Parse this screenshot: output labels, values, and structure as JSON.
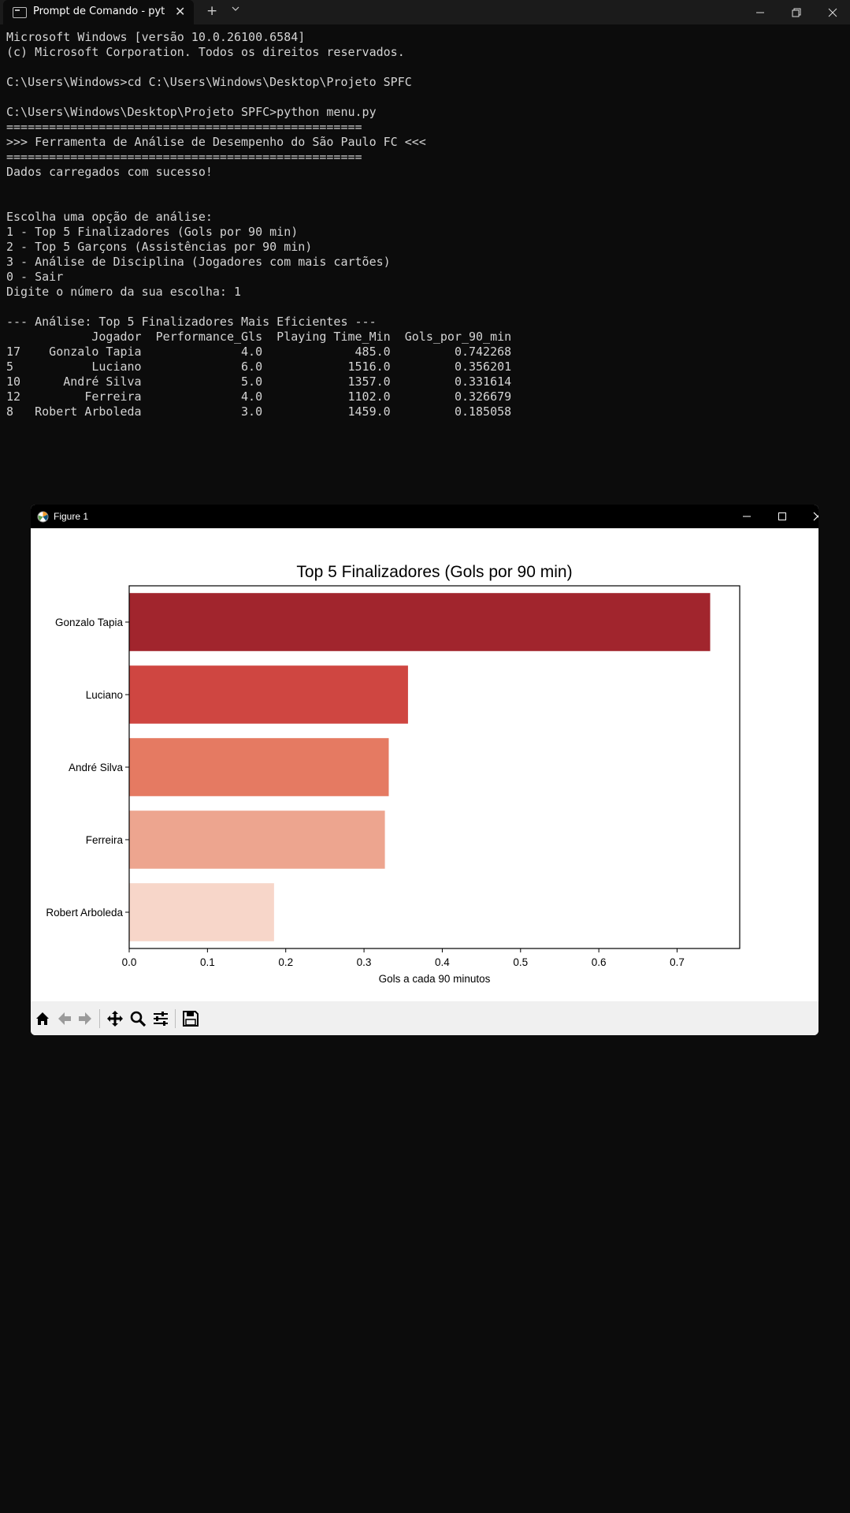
{
  "window": {
    "tab_title": "Prompt de Comando - python",
    "icons": {
      "tab": "terminal-icon",
      "close": "close-icon",
      "new_tab": "plus-icon",
      "dropdown": "chevron-down-icon",
      "minimize": "minimize-icon",
      "maximize": "restore-icon",
      "close_window": "close-icon"
    }
  },
  "terminal": {
    "lines": [
      "Microsoft Windows [versão 10.0.26100.6584]",
      "(c) Microsoft Corporation. Todos os direitos reservados.",
      "",
      "C:\\Users\\Windows>cd C:\\Users\\Windows\\Desktop\\Projeto SPFC",
      "",
      "C:\\Users\\Windows\\Desktop\\Projeto SPFC>python menu.py",
      "==================================================",
      ">>> Ferramenta de Análise de Desempenho do São Paulo FC <<<",
      "==================================================",
      "Dados carregados com sucesso!",
      "",
      "",
      "Escolha uma opção de análise:",
      "1 - Top 5 Finalizadores (Gols por 90 min)",
      "2 - Top 5 Garçons (Assistências por 90 min)",
      "3 - Análise de Disciplina (Jogadores com mais cartões)",
      "0 - Sair",
      "Digite o número da sua escolha: 1",
      "",
      "--- Análise: Top 5 Finalizadores Mais Eficientes ---",
      "            Jogador  Performance_Gls  Playing Time_Min  Gols_por_90_min",
      "17    Gonzalo Tapia              4.0             485.0         0.742268",
      "5           Luciano              6.0            1516.0         0.356201",
      "10      André Silva              5.0            1357.0         0.331614",
      "12         Ferreira              4.0            1102.0         0.326679",
      "8   Robert Arboleda              3.0            1459.0         0.185058"
    ]
  },
  "figure": {
    "title": "Figure 1",
    "toolbar": [
      "home-icon",
      "back-icon",
      "forward-icon",
      "pan-icon",
      "zoom-icon",
      "configure-subplots-icon",
      "save-icon"
    ]
  },
  "chart_data": {
    "type": "bar",
    "orientation": "horizontal",
    "title": "Top 5 Finalizadores (Gols por 90 min)",
    "xlabel": "Gols a cada 90 minutos",
    "ylabel": "",
    "categories": [
      "Gonzalo Tapia",
      "Luciano",
      "André Silva",
      "Ferreira",
      "Robert Arboleda"
    ],
    "values": [
      0.742268,
      0.356201,
      0.331614,
      0.326679,
      0.185058
    ],
    "colors": [
      "#a1252d",
      "#cf4641",
      "#e57a62",
      "#eda58f",
      "#f7d6c9"
    ],
    "xlim": [
      0,
      0.78
    ],
    "xticks": [
      "0.0",
      "0.1",
      "0.2",
      "0.3",
      "0.4",
      "0.5",
      "0.6",
      "0.7"
    ],
    "grid": false
  }
}
